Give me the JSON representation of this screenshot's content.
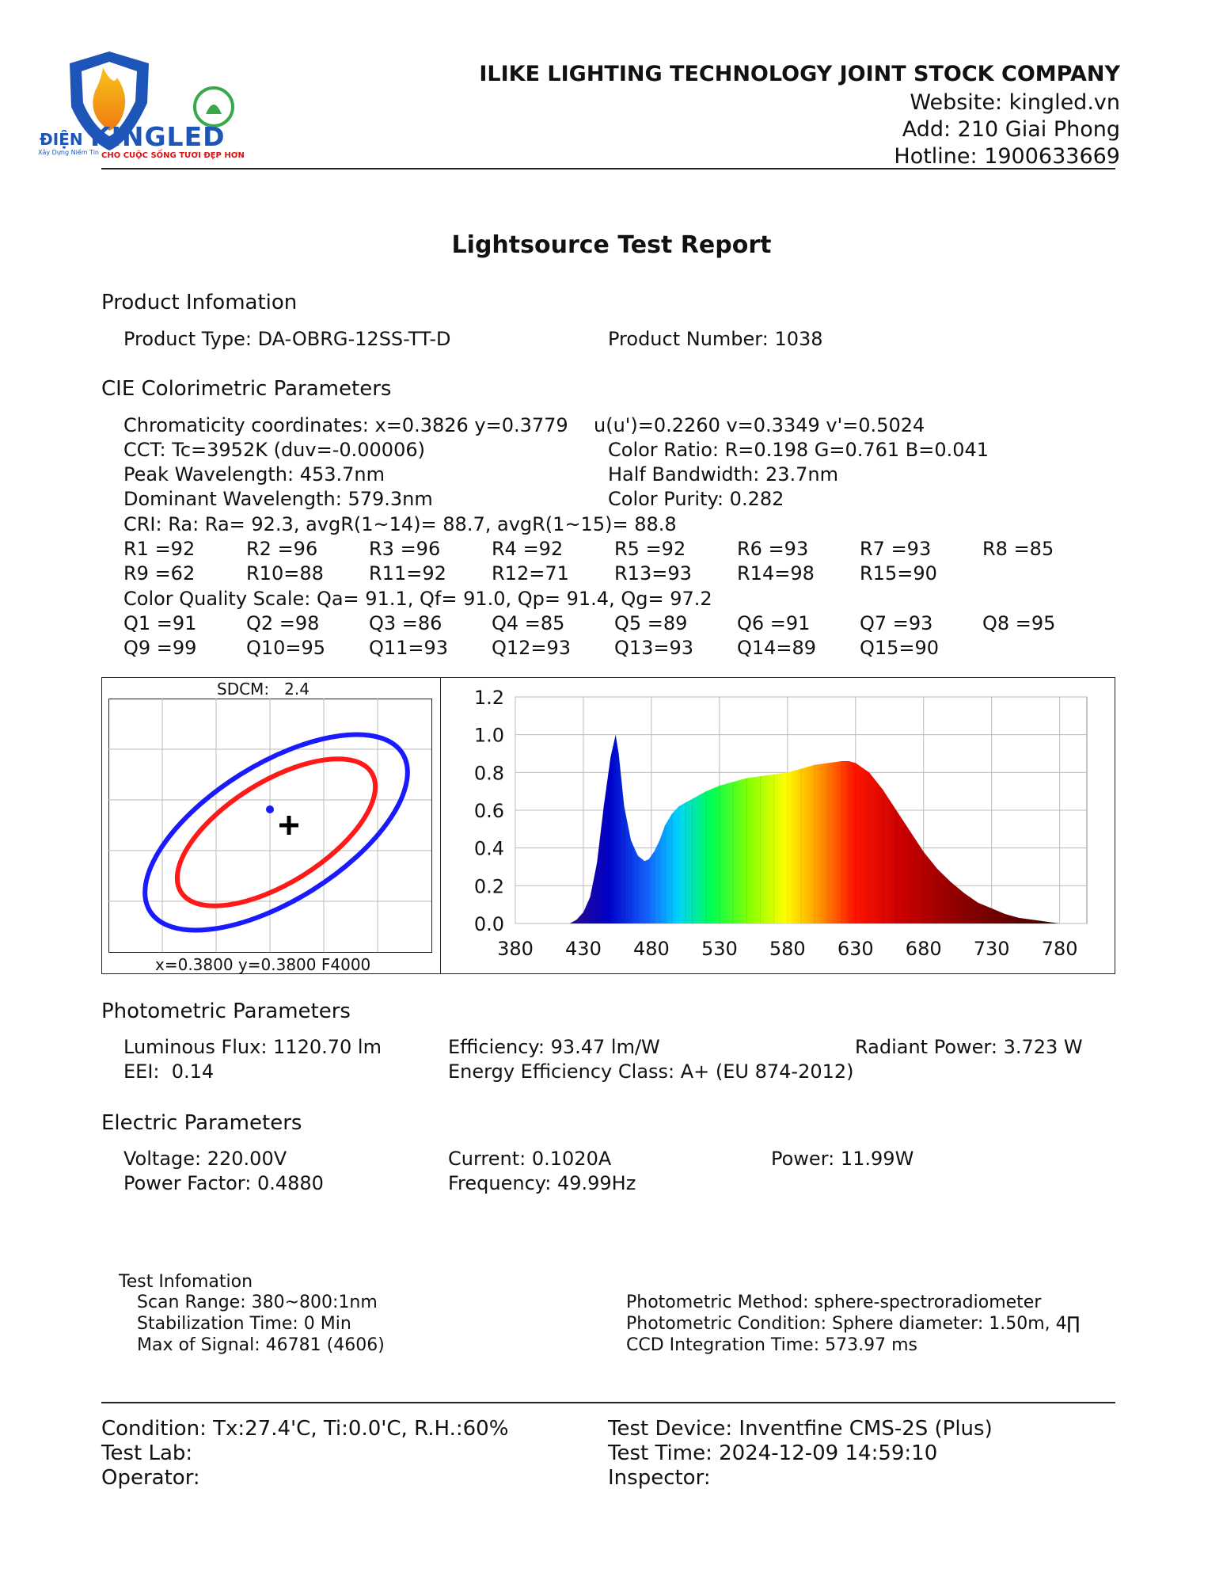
{
  "header": {
    "logo_text_left": "ĐIỆN",
    "logo_text_main": "KINGLED",
    "logo_tagline_left": "Xây Dựng Niềm Tin",
    "logo_tagline": "CHO CUỘC SỐNG TƯƠI ĐẸP HƠN",
    "company": "ILIKE LIGHTING TECHNOLOGY JOINT STOCK COMPANY",
    "website": "Website: kingled.vn",
    "address": "Add: 210 Giai Phong",
    "hotline": "Hotline: 1900633669"
  },
  "title": "Lightsource Test Report",
  "product": {
    "heading": "Product Infomation",
    "type": "Product Type: DA-OBRG-12SS-TT-D",
    "number": "Product Number: 1038"
  },
  "cie": {
    "heading": "CIE Colorimetric Parameters",
    "chromaticity": "Chromaticity coordinates: x=0.3826 y=0.3779",
    "uv": "u(u')=0.2260 v=0.3349 v'=0.5024",
    "cct": "CCT: Tc=3952K (duv=-0.00006)",
    "color_ratio": "Color Ratio: R=0.198  G=0.761  B=0.041",
    "peak": "Peak Wavelength: 453.7nm",
    "half_bw": "Half Bandwidth: 23.7nm",
    "dominant": "Dominant Wavelength: 579.3nm",
    "purity": "Color Purity: 0.282",
    "cri": "CRI: Ra: Ra= 92.3, avgR(1~14)= 88.7, avgR(1~15)= 88.8",
    "r_row1": [
      "R1 =92",
      "R2 =96",
      "R3 =96",
      "R4 =92",
      "R5 =92",
      "R6 =93",
      "R7 =93",
      "R8 =85"
    ],
    "r_row2": [
      "R9 =62",
      "R10=88",
      "R11=92",
      "R12=71",
      "R13=93",
      "R14=98",
      "R15=90"
    ],
    "cqs": "Color Quality Scale: Qa= 91.1, Qf= 91.0, Qp= 91.4, Qg= 97.2",
    "q_row1": [
      "Q1 =91",
      "Q2 =98",
      "Q3 =86",
      "Q4 =85",
      "Q5 =89",
      "Q6 =91",
      "Q7 =93",
      "Q8 =95"
    ],
    "q_row2": [
      "Q9 =99",
      "Q10=95",
      "Q11=93",
      "Q12=93",
      "Q13=93",
      "Q14=89",
      "Q15=90"
    ]
  },
  "sdcm": {
    "label": "SDCM:   2.4",
    "footer": "x=0.3800 y=0.3800 F4000"
  },
  "chart_data": {
    "type": "area",
    "title": "",
    "xlabel": "",
    "ylabel": "",
    "xlim": [
      380,
      800
    ],
    "ylim": [
      0,
      1.2
    ],
    "x_ticks": [
      "380",
      "430",
      "480",
      "530",
      "580",
      "630",
      "680",
      "730",
      "780"
    ],
    "y_ticks": [
      "0.0",
      "0.2",
      "0.4",
      "0.6",
      "0.8",
      "1.0",
      "1.2"
    ],
    "x": [
      420,
      425,
      430,
      435,
      440,
      445,
      450,
      453.7,
      456,
      460,
      465,
      470,
      475,
      478,
      482,
      486,
      490,
      495,
      500,
      505,
      510,
      520,
      530,
      540,
      550,
      560,
      570,
      580,
      590,
      600,
      610,
      620,
      625,
      630,
      640,
      650,
      660,
      670,
      680,
      690,
      700,
      710,
      720,
      730,
      740,
      750,
      760,
      770,
      780
    ],
    "values": [
      0.0,
      0.02,
      0.06,
      0.14,
      0.32,
      0.62,
      0.88,
      1.0,
      0.9,
      0.62,
      0.44,
      0.36,
      0.33,
      0.34,
      0.38,
      0.44,
      0.52,
      0.58,
      0.62,
      0.64,
      0.66,
      0.7,
      0.73,
      0.75,
      0.77,
      0.78,
      0.79,
      0.8,
      0.82,
      0.84,
      0.85,
      0.86,
      0.86,
      0.85,
      0.8,
      0.71,
      0.6,
      0.49,
      0.38,
      0.29,
      0.22,
      0.16,
      0.11,
      0.08,
      0.05,
      0.03,
      0.02,
      0.01,
      0.0
    ],
    "grid": true
  },
  "photometric": {
    "heading": "Photometric Parameters",
    "flux": "Luminous Flux: 1120.70 lm",
    "efficiency": "Efficiency: 93.47 lm/W",
    "radiant": "Radiant Power: 3.723 W",
    "eei": "EEI:  0.14",
    "class": "Energy Efficiency Class: A+ (EU 874-2012)"
  },
  "electric": {
    "heading": "Electric Parameters",
    "voltage": "Voltage: 220.00V",
    "current": "Current: 0.1020A",
    "power": "Power: 11.99W",
    "pf": "Power Factor: 0.4880",
    "freq": "Frequency: 49.99Hz"
  },
  "test": {
    "heading": "Test Infomation",
    "scan": "Scan Range: 380~800:1nm",
    "stab": "Stabilization Time: 0 Min",
    "signal": "Max of Signal: 46781 (4606)",
    "method": "Photometric Method: sphere-spectroradiometer",
    "condition": "Photometric Condition: Sphere diameter: 1.50m, 4∏",
    "ccd": "CCD Integration Time: 573.97 ms"
  },
  "footer": {
    "condition": "Condition: Tx:27.4'C, Ti:0.0'C, R.H.:60%",
    "lab": "Test Lab:",
    "operator": "Operator:",
    "device": "Test Device: Inventfine CMS-2S (Plus)",
    "time": "Test Time: 2024-12-09 14:59:10",
    "inspector": "Inspector:"
  },
  "colors": {
    "ellipse_outer": "#1a1aff",
    "ellipse_inner": "#ff1a1a"
  }
}
